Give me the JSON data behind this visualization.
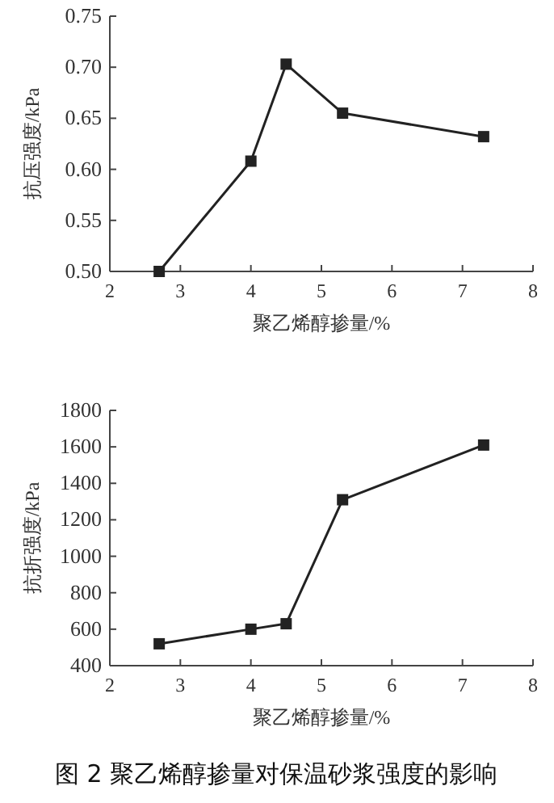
{
  "chart_data": [
    {
      "type": "line",
      "xlabel": "聚乙烯醇掺量/%",
      "ylabel": "抗压强度/kPa",
      "x": [
        2.7,
        4,
        4.5,
        5.3,
        7.3
      ],
      "series": [
        {
          "color": "#222222",
          "values": [
            0.5,
            0.608,
            0.703,
            0.655,
            0.632
          ]
        }
      ],
      "xlim": [
        2,
        8
      ],
      "xticks": [
        2,
        3,
        4,
        5,
        6,
        7,
        8
      ],
      "ylim": [
        0.5,
        0.75
      ],
      "yticks": [
        {
          "value": 0.5,
          "label": "0.50"
        },
        {
          "value": 0.55,
          "label": "0.55"
        },
        {
          "value": 0.6,
          "label": "0.60"
        },
        {
          "value": 0.65,
          "label": "0.65"
        },
        {
          "value": 0.7,
          "label": "0.70"
        },
        {
          "value": 0.75,
          "label": "0.75"
        }
      ],
      "marker": "square",
      "line_style": "solid"
    },
    {
      "type": "line",
      "xlabel": "聚乙烯醇掺量/%",
      "ylabel": "抗折强度/kPa",
      "x": [
        2.7,
        4,
        4.5,
        5.3,
        7.3
      ],
      "series": [
        {
          "color": "#222222",
          "values": [
            520,
            600,
            630,
            1310,
            1610
          ]
        }
      ],
      "xlim": [
        2,
        8
      ],
      "xticks": [
        2,
        3,
        4,
        5,
        6,
        7,
        8
      ],
      "ylim": [
        400,
        1800
      ],
      "yticks": [
        400,
        600,
        800,
        1000,
        1200,
        1400,
        1600,
        1800
      ],
      "marker": "square",
      "line_style": "solid",
      "annotations": [
        "图 2  聚乙烯醇掺量对保温砂浆强度的影响"
      ]
    }
  ]
}
